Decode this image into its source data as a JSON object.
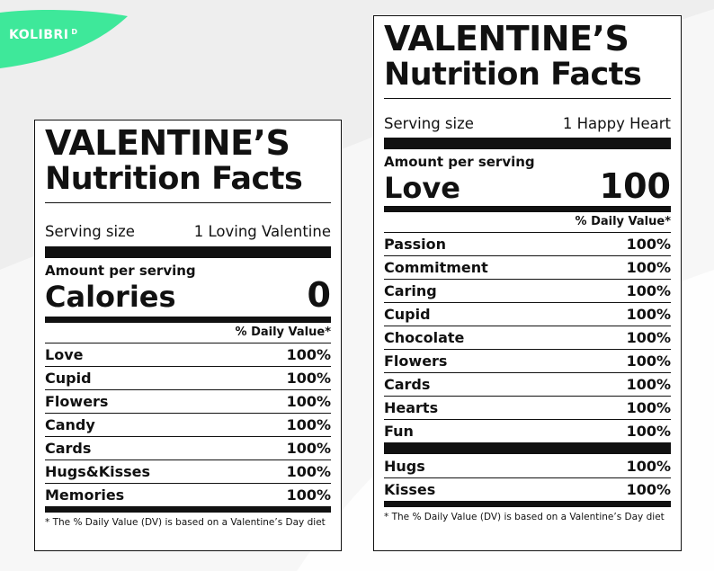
{
  "brand": {
    "logo_text": "KOLIBRI",
    "logo_sup": "D",
    "accent_color": "#3ee89a"
  },
  "label_left": {
    "title_line1": "VALENTINE’S",
    "title_line2": "Nutrition Facts",
    "serving_label": "Serving size",
    "serving_value": "1 Loving Valentine",
    "amount_label": "Amount per serving",
    "main_nutrient": "Calories",
    "main_value": "0",
    "dv_header": "% Daily Value*",
    "rows": [
      {
        "name": "Love",
        "value": "100%"
      },
      {
        "name": "Cupid",
        "value": "100%"
      },
      {
        "name": "Flowers",
        "value": "100%"
      },
      {
        "name": "Candy",
        "value": "100%"
      },
      {
        "name": "Cards",
        "value": "100%"
      },
      {
        "name": "Hugs&Kisses",
        "value": "100%"
      },
      {
        "name": "Memories",
        "value": "100%"
      }
    ],
    "footnote": "* The % Daily Value (DV) is based on a Valentine’s Day diet"
  },
  "label_right": {
    "title_line1": "VALENTINE’S",
    "title_line2": "Nutrition Facts",
    "serving_label": "Serving size",
    "serving_value": "1 Happy Heart",
    "amount_label": "Amount per serving",
    "main_nutrient": "Love",
    "main_value": "100",
    "dv_header": "% Daily Value*",
    "rows": [
      {
        "name": "Passion",
        "value": "100%"
      },
      {
        "name": "Commitment",
        "value": "100%"
      },
      {
        "name": "Caring",
        "value": "100%"
      },
      {
        "name": "Cupid",
        "value": "100%"
      },
      {
        "name": "Chocolate",
        "value": "100%"
      },
      {
        "name": "Flowers",
        "value": "100%"
      },
      {
        "name": "Cards",
        "value": "100%"
      },
      {
        "name": "Hearts",
        "value": "100%"
      },
      {
        "name": "Fun",
        "value": "100%"
      }
    ],
    "rows_after_bar": [
      {
        "name": "Hugs",
        "value": "100%"
      },
      {
        "name": "Kisses",
        "value": "100%"
      }
    ],
    "footnote": "* The % Daily Value (DV) is based on a Valentine’s Day diet"
  }
}
